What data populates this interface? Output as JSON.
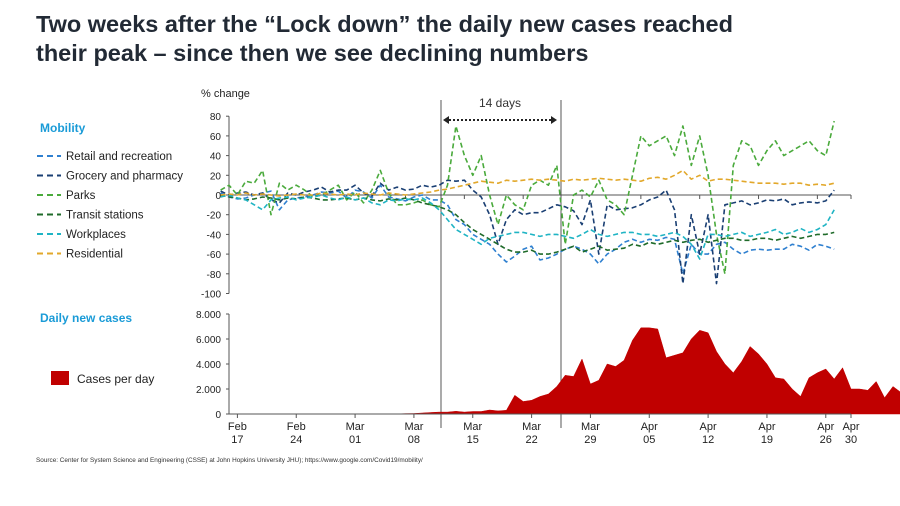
{
  "title_line1": "Two weeks after the “Lock down” the daily new cases reached",
  "title_line2": "their peak – since then we see declining numbers",
  "source": "Source: Center for System Science and Engineering (CSSE) at John Hopkins University JHU); https://www.google.com/Covid19/mobility/",
  "annotation": "14 days",
  "chart_data": [
    {
      "type": "line",
      "section_label": "Mobility",
      "ylabel": "% change",
      "ylim": [
        -100,
        80
      ],
      "yticks": [
        80,
        60,
        40,
        20,
        0,
        -20,
        -40,
        -60,
        -80,
        -100
      ],
      "x_start": "Feb 15",
      "x_end": "Apr 30",
      "vertical_markers": [
        "Mar 11",
        "Mar 25"
      ],
      "series": [
        {
          "name": "Retail and recreation",
          "color": "#2f80d0",
          "values": [
            2,
            -2,
            -4,
            -3,
            0,
            2,
            4,
            -15,
            -5,
            -3,
            -2,
            0,
            3,
            2,
            4,
            -3,
            5,
            3,
            -3,
            10,
            -2,
            -4,
            -6,
            -2,
            0,
            -5,
            -5,
            -10,
            -25,
            -30,
            -40,
            -45,
            -50,
            -60,
            -68,
            -62,
            -55,
            -52,
            -66,
            -64,
            -60,
            -55,
            -52,
            -55,
            -60,
            -70,
            -60,
            -55,
            -48,
            -45,
            -48,
            -45,
            -46,
            -43,
            -45,
            -80,
            -50,
            -60,
            -60,
            -50,
            -48,
            -55,
            -60,
            -56,
            -55,
            -56,
            -55,
            -55,
            -50,
            -52,
            -56,
            -50,
            -52,
            -55
          ]
        },
        {
          "name": "Grocery and pharmacy",
          "color": "#1a3f73",
          "values": [
            4,
            0,
            2,
            3,
            0,
            2,
            -5,
            -8,
            2,
            0,
            3,
            5,
            8,
            3,
            5,
            5,
            10,
            2,
            -1,
            12,
            5,
            8,
            5,
            6,
            10,
            8,
            10,
            15,
            14,
            15,
            5,
            -2,
            -20,
            -50,
            -25,
            -15,
            -20,
            -18,
            -18,
            -14,
            -10,
            -12,
            -16,
            -30,
            -5,
            -60,
            -10,
            -15,
            -14,
            -13,
            -10,
            -5,
            -2,
            5,
            -15,
            -90,
            -20,
            -60,
            -20,
            -90,
            -10,
            -8,
            -6,
            -10,
            -8,
            -5,
            -6,
            -4,
            -10,
            -8,
            -7,
            -8,
            -6,
            5
          ]
        },
        {
          "name": "Parks",
          "color": "#4aaa3c",
          "values": [
            5,
            10,
            0,
            14,
            12,
            25,
            -20,
            12,
            5,
            10,
            5,
            -2,
            0,
            5,
            10,
            -5,
            3,
            -8,
            5,
            25,
            2,
            -10,
            -10,
            -8,
            -5,
            -10,
            -12,
            10,
            70,
            40,
            20,
            40,
            0,
            -30,
            0,
            -10,
            -15,
            10,
            15,
            10,
            30,
            -50,
            0,
            5,
            -2,
            15,
            -5,
            -10,
            -20,
            20,
            60,
            50,
            55,
            60,
            40,
            70,
            30,
            60,
            20,
            -40,
            -80,
            30,
            55,
            50,
            30,
            45,
            55,
            40,
            45,
            50,
            55,
            45,
            40,
            75
          ]
        },
        {
          "name": "Transit stations",
          "color": "#1f6b2a",
          "values": [
            0,
            -2,
            -3,
            -5,
            -4,
            -2,
            -3,
            -5,
            -3,
            -4,
            -2,
            -3,
            -5,
            -5,
            -4,
            -3,
            -5,
            -3,
            -5,
            -6,
            -4,
            -5,
            -3,
            -5,
            -8,
            -10,
            -12,
            -15,
            -20,
            -28,
            -35,
            -40,
            -45,
            -50,
            -55,
            -58,
            -58,
            -56,
            -60,
            -60,
            -58,
            -55,
            -52,
            -58,
            -55,
            -52,
            -56,
            -55,
            -54,
            -50,
            -52,
            -48,
            -50,
            -48,
            -46,
            -48,
            -46,
            -45,
            -48,
            -46,
            -44,
            -44,
            -46,
            -46,
            -44,
            -44,
            -46,
            -44,
            -42,
            -44,
            -42,
            -40,
            -40,
            -38
          ]
        },
        {
          "name": "Workplaces",
          "color": "#1fb4c4",
          "values": [
            -2,
            0,
            -3,
            -5,
            -10,
            -15,
            -5,
            -3,
            -2,
            -5,
            -3,
            -2,
            0,
            -3,
            -5,
            -2,
            -5,
            -3,
            -8,
            -10,
            -5,
            -6,
            -4,
            -5,
            -3,
            -8,
            -15,
            -25,
            -35,
            -40,
            -45,
            -50,
            -44,
            -42,
            -40,
            -38,
            -38,
            -40,
            -42,
            -40,
            -40,
            -42,
            -44,
            -40,
            -35,
            -40,
            -42,
            -40,
            -38,
            -38,
            -40,
            -40,
            -42,
            -40,
            -38,
            -42,
            -50,
            -65,
            -40,
            -40,
            -42,
            -40,
            -38,
            -42,
            -40,
            -38,
            -35,
            -40,
            -38,
            -34,
            -38,
            -35,
            -30,
            -15
          ]
        },
        {
          "name": "Residential",
          "color": "#e2a82b",
          "values": [
            0,
            1,
            0,
            2,
            0,
            1,
            0,
            -1,
            0,
            1,
            0,
            0,
            2,
            1,
            0,
            1,
            0,
            2,
            1,
            0,
            2,
            1,
            0,
            1,
            2,
            3,
            5,
            6,
            8,
            10,
            12,
            14,
            13,
            12,
            15,
            14,
            15,
            16,
            15,
            16,
            15,
            14,
            16,
            15,
            16,
            17,
            16,
            15,
            16,
            15,
            14,
            17,
            18,
            16,
            20,
            25,
            16,
            20,
            14,
            16,
            16,
            15,
            14,
            13,
            12,
            12,
            12,
            11,
            12,
            12,
            10,
            11,
            10,
            12
          ]
        }
      ]
    },
    {
      "type": "area",
      "section_label": "Daily new cases",
      "ylim": [
        0,
        8000
      ],
      "yticks": [
        "8.000",
        "6.000",
        "4.000",
        "2.000",
        "0"
      ],
      "x_start": "Feb 17",
      "x_end": "Apr 30",
      "legend": "Cases per day",
      "color": "#c00000",
      "values": [
        0,
        0,
        0,
        0,
        0,
        0,
        0,
        0,
        0,
        0,
        0,
        0,
        0,
        0,
        0,
        0,
        0,
        0,
        0,
        0,
        10,
        30,
        40,
        80,
        120,
        150,
        150,
        220,
        150,
        200,
        200,
        320,
        250,
        300,
        1500,
        1000,
        1100,
        1400,
        1600,
        2200,
        3100,
        3000,
        4400,
        2400,
        2700,
        4000,
        3800,
        4300,
        5900,
        6900,
        6900,
        6800,
        4500,
        4700,
        4900,
        6000,
        6700,
        6500,
        5000,
        4000,
        3300,
        4200,
        5400,
        4800,
        4000,
        2900,
        2800,
        2000,
        1400,
        2900,
        3300,
        3600,
        2800,
        3700,
        2000,
        2000,
        1900,
        2600,
        1300,
        2200,
        1700,
        1300,
        1000,
        1100,
        1500,
        1400
      ]
    }
  ],
  "x_axis": {
    "ticks": [
      {
        "month": "Feb",
        "day": "17"
      },
      {
        "month": "Feb",
        "day": "24"
      },
      {
        "month": "Mar",
        "day": "01"
      },
      {
        "month": "Mar",
        "day": "08"
      },
      {
        "month": "Mar",
        "day": "15"
      },
      {
        "month": "Mar",
        "day": "22"
      },
      {
        "month": "Mar",
        "day": "29"
      },
      {
        "month": "Apr",
        "day": "05"
      },
      {
        "month": "Apr",
        "day": "12"
      },
      {
        "month": "Apr",
        "day": "19"
      },
      {
        "month": "Apr",
        "day": "26"
      },
      {
        "month": "Apr",
        "day": "30"
      }
    ]
  }
}
